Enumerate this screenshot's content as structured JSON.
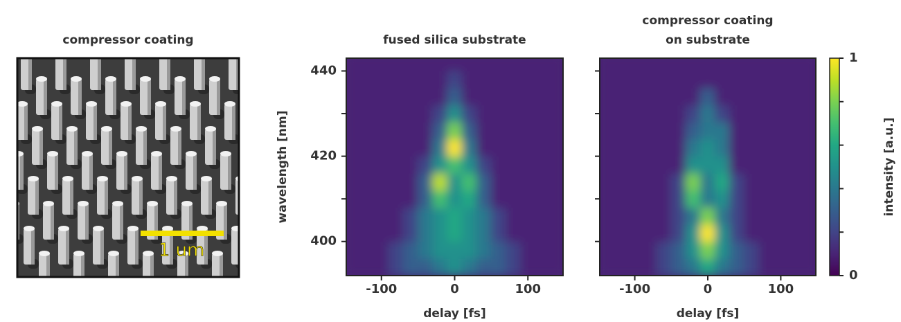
{
  "image_panel": {
    "title": "compressor coating",
    "scale_bar_label": "1 um"
  },
  "chart_data": [
    {
      "type": "heatmap",
      "title": [
        "fused silica substrate"
      ],
      "x_label": "delay [fs]",
      "y_label": "wavelength [nm]",
      "x": [
        -140,
        -120,
        -100,
        -80,
        -60,
        -40,
        -20,
        0,
        20,
        40,
        60,
        80,
        100,
        120,
        140
      ],
      "y": [
        394,
        398,
        402,
        406,
        410,
        414,
        418,
        422,
        426,
        430,
        434,
        438,
        442
      ],
      "values": [
        [
          0.1,
          0.1,
          0.1,
          0.2,
          0.3,
          0.3,
          0.4,
          0.5,
          0.4,
          0.3,
          0.3,
          0.2,
          0.1,
          0.1,
          0.1
        ],
        [
          0.1,
          0.1,
          0.1,
          0.2,
          0.3,
          0.4,
          0.5,
          0.5,
          0.5,
          0.4,
          0.3,
          0.2,
          0.1,
          0.1,
          0.1
        ],
        [
          0.1,
          0.1,
          0.1,
          0.1,
          0.2,
          0.4,
          0.5,
          0.6,
          0.5,
          0.4,
          0.2,
          0.1,
          0.1,
          0.1,
          0.1
        ],
        [
          0.1,
          0.1,
          0.1,
          0.1,
          0.2,
          0.4,
          0.5,
          0.6,
          0.5,
          0.4,
          0.2,
          0.1,
          0.1,
          0.1,
          0.1
        ],
        [
          0.1,
          0.1,
          0.1,
          0.1,
          0.1,
          0.3,
          0.7,
          0.5,
          0.6,
          0.3,
          0.1,
          0.1,
          0.1,
          0.1,
          0.1
        ],
        [
          0.1,
          0.1,
          0.1,
          0.1,
          0.1,
          0.3,
          0.9,
          0.5,
          0.7,
          0.3,
          0.1,
          0.1,
          0.1,
          0.1,
          0.1
        ],
        [
          0.1,
          0.1,
          0.1,
          0.1,
          0.1,
          0.2,
          0.5,
          0.7,
          0.5,
          0.2,
          0.1,
          0.1,
          0.1,
          0.1,
          0.1
        ],
        [
          0.1,
          0.1,
          0.1,
          0.1,
          0.1,
          0.1,
          0.4,
          1,
          0.4,
          0.1,
          0.1,
          0.1,
          0.1,
          0.1,
          0.1
        ],
        [
          0.1,
          0.1,
          0.1,
          0.1,
          0.1,
          0.1,
          0.3,
          0.8,
          0.3,
          0.1,
          0.1,
          0.1,
          0.1,
          0.1,
          0.1
        ],
        [
          0.1,
          0.1,
          0.1,
          0.1,
          0.1,
          0.1,
          0.2,
          0.5,
          0.2,
          0.1,
          0.1,
          0.1,
          0.1,
          0.1,
          0.1
        ],
        [
          0.1,
          0.1,
          0.1,
          0.1,
          0.1,
          0.1,
          0.1,
          0.3,
          0.1,
          0.1,
          0.1,
          0.1,
          0.1,
          0.1,
          0.1
        ],
        [
          0.1,
          0.1,
          0.1,
          0.1,
          0.1,
          0.1,
          0.1,
          0.2,
          0.1,
          0.1,
          0.1,
          0.1,
          0.1,
          0.1,
          0.1
        ],
        [
          0.1,
          0.1,
          0.1,
          0.1,
          0.1,
          0.1,
          0.1,
          0.1,
          0.1,
          0.1,
          0.1,
          0.1,
          0.1,
          0.1,
          0.1
        ]
      ],
      "xlim": [
        -148,
        148
      ],
      "xticks": [
        -100,
        0,
        100
      ],
      "ylim": [
        392,
        443
      ],
      "yticks": [
        400,
        420,
        440
      ],
      "yminor_ticks": [
        410,
        430
      ],
      "ytick_labels": true
    },
    {
      "type": "heatmap",
      "title": [
        "compressor coating",
        "on substrate"
      ],
      "x_label": "delay [fs]",
      "x": [
        -140,
        -120,
        -100,
        -80,
        -60,
        -40,
        -20,
        0,
        20,
        40,
        60,
        80,
        100,
        120,
        140
      ],
      "y": [
        394,
        398,
        402,
        406,
        410,
        414,
        418,
        422,
        426,
        430,
        434,
        438,
        442
      ],
      "values": [
        [
          0.1,
          0.1,
          0.1,
          0.1,
          0.2,
          0.3,
          0.4,
          0.6,
          0.4,
          0.3,
          0.2,
          0.1,
          0.1,
          0.1,
          0.1
        ],
        [
          0.1,
          0.1,
          0.1,
          0.1,
          0.2,
          0.3,
          0.5,
          0.8,
          0.5,
          0.3,
          0.2,
          0.1,
          0.1,
          0.1,
          0.1
        ],
        [
          0.1,
          0.1,
          0.1,
          0.1,
          0.1,
          0.2,
          0.5,
          1,
          0.5,
          0.2,
          0.1,
          0.1,
          0.1,
          0.1,
          0.1
        ],
        [
          0.1,
          0.1,
          0.1,
          0.1,
          0.1,
          0.2,
          0.4,
          0.8,
          0.4,
          0.2,
          0.1,
          0.1,
          0.1,
          0.1,
          0.1
        ],
        [
          0.1,
          0.1,
          0.1,
          0.1,
          0.1,
          0.2,
          0.7,
          0.4,
          0.5,
          0.2,
          0.1,
          0.1,
          0.1,
          0.1,
          0.1
        ],
        [
          0.1,
          0.1,
          0.1,
          0.1,
          0.1,
          0.2,
          0.8,
          0.4,
          0.6,
          0.2,
          0.1,
          0.1,
          0.1,
          0.1,
          0.1
        ],
        [
          0.1,
          0.1,
          0.1,
          0.1,
          0.1,
          0.1,
          0.5,
          0.5,
          0.5,
          0.1,
          0.1,
          0.1,
          0.1,
          0.1,
          0.1
        ],
        [
          0.1,
          0.1,
          0.1,
          0.1,
          0.1,
          0.1,
          0.4,
          0.5,
          0.4,
          0.1,
          0.1,
          0.1,
          0.1,
          0.1,
          0.1
        ],
        [
          0.1,
          0.1,
          0.1,
          0.1,
          0.1,
          0.1,
          0.3,
          0.4,
          0.4,
          0.1,
          0.1,
          0.1,
          0.1,
          0.1,
          0.1
        ],
        [
          0.1,
          0.1,
          0.1,
          0.1,
          0.1,
          0.1,
          0.2,
          0.4,
          0.2,
          0.1,
          0.1,
          0.1,
          0.1,
          0.1,
          0.1
        ],
        [
          0.1,
          0.1,
          0.1,
          0.1,
          0.1,
          0.1,
          0.1,
          0.3,
          0.1,
          0.1,
          0.1,
          0.1,
          0.1,
          0.1,
          0.1
        ],
        [
          0.1,
          0.1,
          0.1,
          0.1,
          0.1,
          0.1,
          0.1,
          0.1,
          0.1,
          0.1,
          0.1,
          0.1,
          0.1,
          0.1,
          0.1
        ],
        [
          0.1,
          0.1,
          0.1,
          0.1,
          0.1,
          0.1,
          0.1,
          0.1,
          0.1,
          0.1,
          0.1,
          0.1,
          0.1,
          0.1,
          0.1
        ]
      ],
      "xlim": [
        -148,
        148
      ],
      "xticks": [
        -100,
        0,
        100
      ],
      "ylim": [
        392,
        443
      ],
      "yticks": [
        400,
        410,
        420,
        430,
        440
      ],
      "ytick_labels": false
    }
  ],
  "colorbar": {
    "label": "intensity [a.u.]",
    "colormap": "viridis",
    "lim": [
      0,
      1
    ],
    "ticks": [
      0,
      1
    ],
    "minor_ticks": [
      0.2,
      0.4,
      0.6,
      0.8
    ]
  }
}
